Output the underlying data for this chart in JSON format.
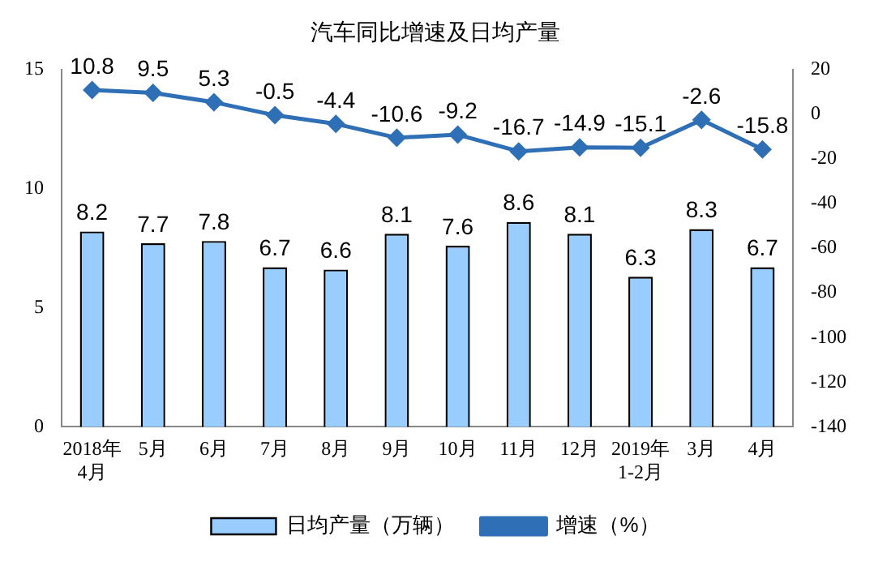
{
  "chart_data": {
    "type": "bar",
    "title": "汽车同比增速及日均产量",
    "categories": [
      "2018年\n4月",
      "5月",
      "6月",
      "7月",
      "8月",
      "9月",
      "10月",
      "11月",
      "12月",
      "2019年\n1-2月",
      "3月",
      "4月"
    ],
    "series": [
      {
        "name": "日均产量（万辆）",
        "color": "#99ccff",
        "values": [
          8.2,
          7.7,
          7.8,
          6.7,
          6.6,
          8.1,
          7.6,
          8.6,
          8.1,
          6.3,
          8.3,
          6.7
        ]
      },
      {
        "name": "增速（%）",
        "type": "line",
        "axis": "y2",
        "color": "#2e6fb5",
        "marker": "diamond",
        "values": [
          10.8,
          9.5,
          5.3,
          -0.5,
          -4.4,
          -10.6,
          -9.2,
          -16.7,
          -14.9,
          -15.1,
          -2.6,
          -15.8
        ]
      }
    ],
    "ylim": [
      0,
      15
    ],
    "yticks": [
      0,
      5,
      10,
      15
    ],
    "y2lim": [
      -140,
      20
    ],
    "y2ticks": [
      -140,
      -120,
      -100,
      -80,
      -60,
      -40,
      -20,
      0,
      20
    ],
    "data_labels": true,
    "legend": "bottom",
    "grid": false
  }
}
